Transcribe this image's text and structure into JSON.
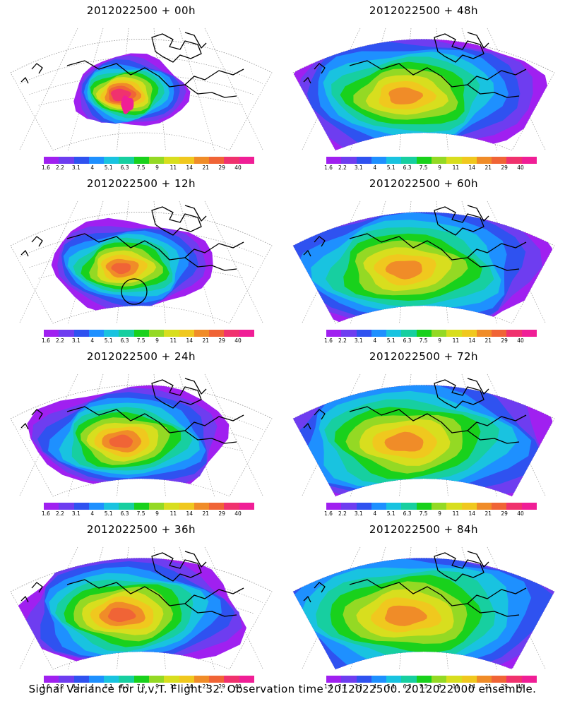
{
  "colorbar": {
    "colors": [
      "#a020f0",
      "#6e3df0",
      "#2f52f0",
      "#1e90ff",
      "#19c3e0",
      "#17cfa0",
      "#19d11c",
      "#94d924",
      "#d8de1e",
      "#f0c81e",
      "#f08c28",
      "#f06436",
      "#f0326e",
      "#f01e96"
    ],
    "labels": [
      "1.6",
      "2.2",
      "3.1",
      "4",
      "5.1",
      "6.3",
      "7.5",
      "9",
      "11",
      "14",
      "21",
      "29",
      "40"
    ]
  },
  "panels": [
    {
      "title": "2012022500 + 00h",
      "spread": 0.15,
      "peak": 1.0,
      "circle": false
    },
    {
      "title": "2012022500 + 48h",
      "spread": 0.75,
      "peak": 0.72,
      "circle": false
    },
    {
      "title": "2012022500 + 12h",
      "spread": 0.35,
      "peak": 0.78,
      "circle": true
    },
    {
      "title": "2012022500 + 60h",
      "spread": 0.85,
      "peak": 0.7,
      "circle": false
    },
    {
      "title": "2012022500 + 24h",
      "spread": 0.5,
      "peak": 0.8,
      "circle": false
    },
    {
      "title": "2012022500 + 72h",
      "spread": 0.92,
      "peak": 0.68,
      "circle": false
    },
    {
      "title": "2012022500 + 36h",
      "spread": 0.62,
      "peak": 0.78,
      "circle": false
    },
    {
      "title": "2012022500 + 84h",
      "spread": 1.0,
      "peak": 0.72,
      "circle": false
    }
  ],
  "footer": "Signal Variance for u,v,T. Flight 32. Observation time 2012022500. 2012022000 ensemble."
}
